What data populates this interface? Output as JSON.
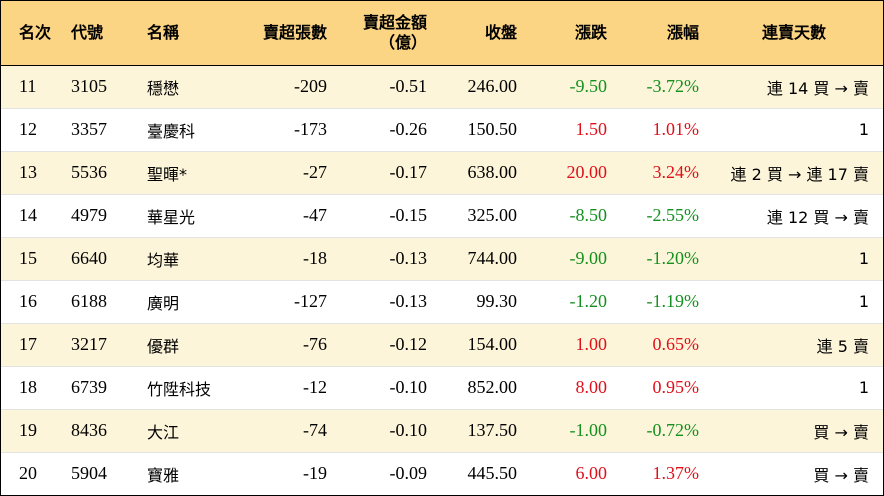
{
  "headers": {
    "rank": "名次",
    "code": "代號",
    "name": "名稱",
    "net_sell_lots": "賣超張數",
    "net_sell_amount_l1": "賣超金額",
    "net_sell_amount_l2": "（億）",
    "close": "收盤",
    "change": "漲跌",
    "change_pct": "漲幅",
    "consecutive": "連賣天數"
  },
  "colors": {
    "header_bg": "#fbd584",
    "alt_row_bg": "#fdf5d9",
    "up": "#e0101a",
    "down": "#14901f"
  },
  "rows": [
    {
      "rank": "11",
      "code": "3105",
      "name": "穩懋",
      "lots": "-209",
      "amount": "-0.51",
      "close": "246.00",
      "change": "-9.50",
      "pct": "-3.72%",
      "dir": "down",
      "days": "連 14 買 → 賣"
    },
    {
      "rank": "12",
      "code": "3357",
      "name": "臺慶科",
      "lots": "-173",
      "amount": "-0.26",
      "close": "150.50",
      "change": "1.50",
      "pct": "1.01%",
      "dir": "up",
      "days": "1"
    },
    {
      "rank": "13",
      "code": "5536",
      "name": "聖暉*",
      "lots": "-27",
      "amount": "-0.17",
      "close": "638.00",
      "change": "20.00",
      "pct": "3.24%",
      "dir": "up",
      "days": "連 2 買 → 連 17 賣"
    },
    {
      "rank": "14",
      "code": "4979",
      "name": "華星光",
      "lots": "-47",
      "amount": "-0.15",
      "close": "325.00",
      "change": "-8.50",
      "pct": "-2.55%",
      "dir": "down",
      "days": "連 12 買 → 賣"
    },
    {
      "rank": "15",
      "code": "6640",
      "name": "均華",
      "lots": "-18",
      "amount": "-0.13",
      "close": "744.00",
      "change": "-9.00",
      "pct": "-1.20%",
      "dir": "down",
      "days": "1"
    },
    {
      "rank": "16",
      "code": "6188",
      "name": "廣明",
      "lots": "-127",
      "amount": "-0.13",
      "close": "99.30",
      "change": "-1.20",
      "pct": "-1.19%",
      "dir": "down",
      "days": "1"
    },
    {
      "rank": "17",
      "code": "3217",
      "name": "優群",
      "lots": "-76",
      "amount": "-0.12",
      "close": "154.00",
      "change": "1.00",
      "pct": "0.65%",
      "dir": "up",
      "days": "連 5 賣"
    },
    {
      "rank": "18",
      "code": "6739",
      "name": "竹陞科技",
      "lots": "-12",
      "amount": "-0.10",
      "close": "852.00",
      "change": "8.00",
      "pct": "0.95%",
      "dir": "up",
      "days": "1"
    },
    {
      "rank": "19",
      "code": "8436",
      "name": "大江",
      "lots": "-74",
      "amount": "-0.10",
      "close": "137.50",
      "change": "-1.00",
      "pct": "-0.72%",
      "dir": "down",
      "days": "買 → 賣"
    },
    {
      "rank": "20",
      "code": "5904",
      "name": "寶雅",
      "lots": "-19",
      "amount": "-0.09",
      "close": "445.50",
      "change": "6.00",
      "pct": "1.37%",
      "dir": "up",
      "days": "買 → 賣"
    }
  ]
}
